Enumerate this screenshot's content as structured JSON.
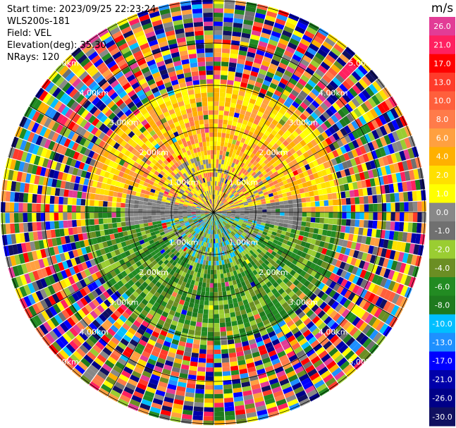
{
  "header": {
    "start_time": "Start time: 2023/09/25 22:23:24",
    "instrument": "WLS200s-181",
    "field": "Field: VEL",
    "elevation": "Elevation(deg): 35.30",
    "nrays": "NRays: 120"
  },
  "chart_data": {
    "type": "heatmap",
    "projection": "polar (PPI scan)",
    "center_km": [
      0,
      0
    ],
    "range_rings_km": [
      1.0,
      2.0,
      3.0,
      4.0,
      5.0
    ],
    "ring_labels": [
      "1.00km",
      "2.00km",
      "3.00km",
      "4.00km",
      "5.00km"
    ],
    "radial_lines_deg": [
      0,
      30,
      60,
      90,
      120,
      150,
      180,
      210,
      240,
      270,
      300,
      330
    ],
    "nrays": 120,
    "max_range_km": 5.0,
    "colorbar": {
      "unit": "m/s",
      "ticks": [
        "26.0",
        "21.0",
        "17.0",
        "13.0",
        "10.0",
        "8.0",
        "6.0",
        "4.0",
        "2.0",
        "1.0",
        "0.0",
        "-1.0",
        "-2.0",
        "-4.0",
        "-6.0",
        "-8.0",
        "-10.0",
        "-13.0",
        "-17.0",
        "-21.0",
        "-26.0",
        "-30.0"
      ],
      "colors": [
        "#e23c96",
        "#ff2060",
        "#ff0000",
        "#ff3b2a",
        "#ff5f3c",
        "#ff7b4a",
        "#ffa040",
        "#ffb000",
        "#ffe000",
        "#ffff00",
        "#888888",
        "#707070",
        "#9acd32",
        "#6b8e23",
        "#228b22",
        "#1e7a1e",
        "#00bfff",
        "#1e90ff",
        "#0000ff",
        "#0000aa",
        "#000088",
        "#101060"
      ]
    }
  }
}
